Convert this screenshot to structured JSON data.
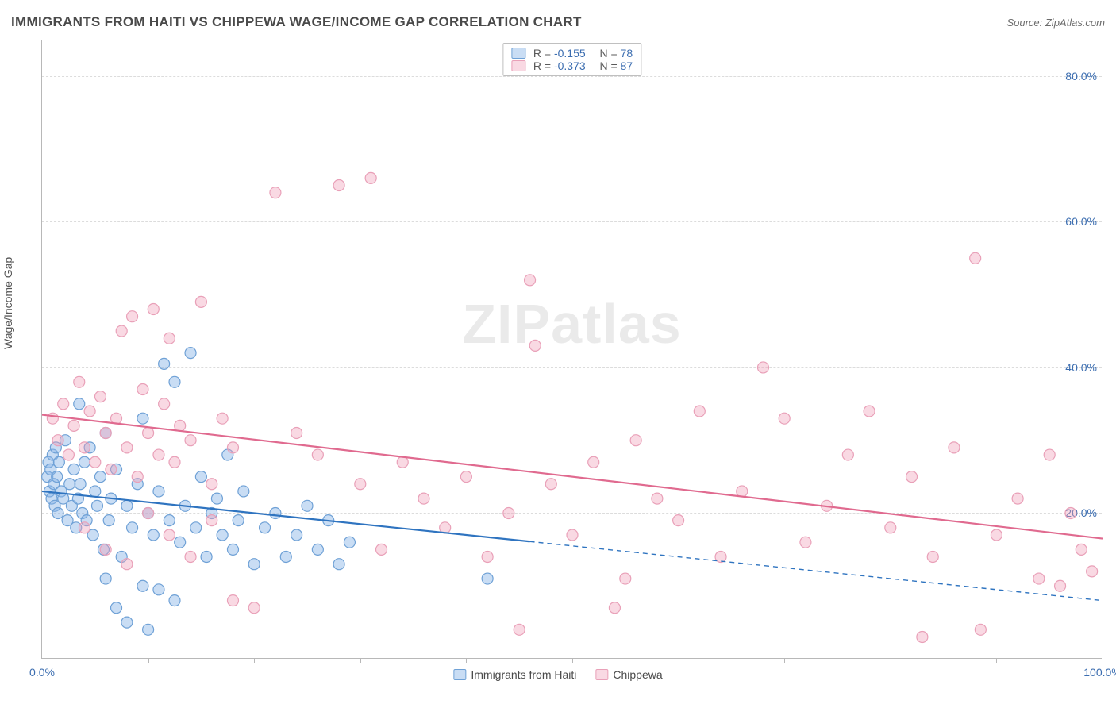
{
  "header": {
    "title": "IMMIGRANTS FROM HAITI VS CHIPPEWA WAGE/INCOME GAP CORRELATION CHART",
    "source_prefix": "Source: ",
    "source_name": "ZipAtlas.com"
  },
  "axes": {
    "ylabel": "Wage/Income Gap",
    "xlim": [
      0,
      100
    ],
    "ylim": [
      0,
      85
    ],
    "yticks": [
      {
        "v": 20,
        "label": "20.0%"
      },
      {
        "v": 40,
        "label": "40.0%"
      },
      {
        "v": 60,
        "label": "60.0%"
      },
      {
        "v": 80,
        "label": "80.0%"
      }
    ],
    "xticks_minor": [
      10,
      20,
      30,
      40,
      50,
      60,
      70,
      80,
      90
    ],
    "xticks_labeled": [
      {
        "v": 0,
        "label": "0.0%"
      },
      {
        "v": 100,
        "label": "100.0%"
      }
    ]
  },
  "colors": {
    "series1_fill": "rgba(135,180,230,0.45)",
    "series1_stroke": "#6fa1d6",
    "series1_line": "#2f74c0",
    "series2_fill": "rgba(240,160,185,0.40)",
    "series2_stroke": "#e9a0b8",
    "series2_line": "#e06a8f",
    "grid": "#dcdcdc",
    "axis": "#b8b8b8",
    "tick_text": "#3b6db0",
    "title_text": "#4a4a4a",
    "source_text": "#6b6b6b",
    "background": "#ffffff"
  },
  "marker": {
    "radius": 7,
    "stroke_width": 1.2
  },
  "trend_line_width": 2.2,
  "legend_top": {
    "rows": [
      {
        "series": 1,
        "r_label": "R = ",
        "r_value": "-0.155",
        "n_label": "N = ",
        "n_value": "78"
      },
      {
        "series": 2,
        "r_label": "R = ",
        "r_value": "-0.373",
        "n_label": "N = ",
        "n_value": "87"
      }
    ]
  },
  "legend_bottom": {
    "items": [
      {
        "series": 1,
        "label": "Immigrants from Haiti"
      },
      {
        "series": 2,
        "label": "Chippewa"
      }
    ]
  },
  "watermark": {
    "text1": "ZIP",
    "text2": "atlas"
  },
  "series": [
    {
      "name": "Immigrants from Haiti",
      "data": [
        [
          0.5,
          25
        ],
        [
          0.6,
          27
        ],
        [
          0.7,
          23
        ],
        [
          0.8,
          26
        ],
        [
          0.9,
          22
        ],
        [
          1.0,
          28
        ],
        [
          1.1,
          24
        ],
        [
          1.2,
          21
        ],
        [
          1.3,
          29
        ],
        [
          1.4,
          25
        ],
        [
          1.5,
          20
        ],
        [
          1.6,
          27
        ],
        [
          1.8,
          23
        ],
        [
          2.0,
          22
        ],
        [
          2.2,
          30
        ],
        [
          2.4,
          19
        ],
        [
          2.6,
          24
        ],
        [
          2.8,
          21
        ],
        [
          3.0,
          26
        ],
        [
          3.2,
          18
        ],
        [
          3.4,
          22
        ],
        [
          3.5,
          35
        ],
        [
          3.6,
          24
        ],
        [
          3.8,
          20
        ],
        [
          4.0,
          27
        ],
        [
          4.2,
          19
        ],
        [
          4.5,
          29
        ],
        [
          4.8,
          17
        ],
        [
          5.0,
          23
        ],
        [
          5.2,
          21
        ],
        [
          5.5,
          25
        ],
        [
          5.8,
          15
        ],
        [
          6.0,
          31
        ],
        [
          6.3,
          19
        ],
        [
          6.5,
          22
        ],
        [
          7.0,
          26
        ],
        [
          7.5,
          14
        ],
        [
          8.0,
          21
        ],
        [
          8.5,
          18
        ],
        [
          9.0,
          24
        ],
        [
          9.5,
          33
        ],
        [
          10.0,
          20
        ],
        [
          10.5,
          17
        ],
        [
          11.0,
          23
        ],
        [
          11.5,
          40.5
        ],
        [
          12.0,
          19
        ],
        [
          12.5,
          38
        ],
        [
          13.0,
          16
        ],
        [
          13.5,
          21
        ],
        [
          14.0,
          42
        ],
        [
          14.5,
          18
        ],
        [
          15.0,
          25
        ],
        [
          15.5,
          14
        ],
        [
          16.0,
          20
        ],
        [
          16.5,
          22
        ],
        [
          17.0,
          17
        ],
        [
          17.5,
          28
        ],
        [
          18.0,
          15
        ],
        [
          18.5,
          19
        ],
        [
          19.0,
          23
        ],
        [
          20.0,
          13
        ],
        [
          21.0,
          18
        ],
        [
          22.0,
          20
        ],
        [
          23.0,
          14
        ],
        [
          24.0,
          17
        ],
        [
          25.0,
          21
        ],
        [
          26.0,
          15
        ],
        [
          27.0,
          19
        ],
        [
          28.0,
          13
        ],
        [
          29.0,
          16
        ],
        [
          8.0,
          5
        ],
        [
          10.0,
          4
        ],
        [
          9.5,
          10
        ],
        [
          12.5,
          8
        ],
        [
          6.0,
          11
        ],
        [
          11.0,
          9.5
        ],
        [
          7.0,
          7
        ],
        [
          42.0,
          11
        ]
      ],
      "trend": {
        "x0": 0,
        "y0": 23.0,
        "x1": 100,
        "y1": 8.0,
        "solid_until_x": 46
      }
    },
    {
      "name": "Chippewa",
      "data": [
        [
          1.0,
          33
        ],
        [
          1.5,
          30
        ],
        [
          2.0,
          35
        ],
        [
          2.5,
          28
        ],
        [
          3.0,
          32
        ],
        [
          3.5,
          38
        ],
        [
          4.0,
          29
        ],
        [
          4.5,
          34
        ],
        [
          5.0,
          27
        ],
        [
          5.5,
          36
        ],
        [
          6.0,
          31
        ],
        [
          6.5,
          26
        ],
        [
          7.0,
          33
        ],
        [
          7.5,
          45
        ],
        [
          8.0,
          29
        ],
        [
          8.5,
          47
        ],
        [
          9.0,
          25
        ],
        [
          9.5,
          37
        ],
        [
          10.0,
          31
        ],
        [
          10.5,
          48
        ],
        [
          11.0,
          28
        ],
        [
          11.5,
          35
        ],
        [
          12.0,
          44
        ],
        [
          12.5,
          27
        ],
        [
          13.0,
          32
        ],
        [
          14.0,
          30
        ],
        [
          15.0,
          49
        ],
        [
          16.0,
          24
        ],
        [
          17.0,
          33
        ],
        [
          18.0,
          29
        ],
        [
          4.0,
          18
        ],
        [
          6.0,
          15
        ],
        [
          8.0,
          13
        ],
        [
          10.0,
          20
        ],
        [
          12.0,
          17
        ],
        [
          14.0,
          14
        ],
        [
          16.0,
          19
        ],
        [
          18.0,
          8
        ],
        [
          20.0,
          7
        ],
        [
          22.0,
          64
        ],
        [
          24.0,
          31
        ],
        [
          26.0,
          28
        ],
        [
          28.0,
          65
        ],
        [
          30.0,
          24
        ],
        [
          31.0,
          66
        ],
        [
          32.0,
          15
        ],
        [
          34.0,
          27
        ],
        [
          36.0,
          22
        ],
        [
          38.0,
          18
        ],
        [
          40.0,
          25
        ],
        [
          42.0,
          14
        ],
        [
          44.0,
          20
        ],
        [
          46.0,
          52
        ],
        [
          46.5,
          43
        ],
        [
          48.0,
          24
        ],
        [
          50.0,
          17
        ],
        [
          52.0,
          27
        ],
        [
          54.0,
          7
        ],
        [
          56.0,
          30
        ],
        [
          58.0,
          22
        ],
        [
          60.0,
          19
        ],
        [
          62.0,
          34
        ],
        [
          64.0,
          14
        ],
        [
          66.0,
          23
        ],
        [
          68.0,
          40
        ],
        [
          70.0,
          33
        ],
        [
          72.0,
          16
        ],
        [
          74.0,
          21
        ],
        [
          76.0,
          28
        ],
        [
          78.0,
          34
        ],
        [
          80.0,
          18
        ],
        [
          82.0,
          25
        ],
        [
          83.0,
          3
        ],
        [
          84.0,
          14
        ],
        [
          86.0,
          29
        ],
        [
          88.0,
          55
        ],
        [
          88.5,
          4
        ],
        [
          90.0,
          17
        ],
        [
          92.0,
          22
        ],
        [
          94.0,
          11
        ],
        [
          95.0,
          28
        ],
        [
          96.0,
          10
        ],
        [
          97.0,
          20
        ],
        [
          98.0,
          15
        ],
        [
          99.0,
          12
        ],
        [
          45.0,
          4
        ],
        [
          55.0,
          11
        ]
      ],
      "trend": {
        "x0": 0,
        "y0": 33.5,
        "x1": 100,
        "y1": 16.5,
        "solid_until_x": 100
      }
    }
  ]
}
